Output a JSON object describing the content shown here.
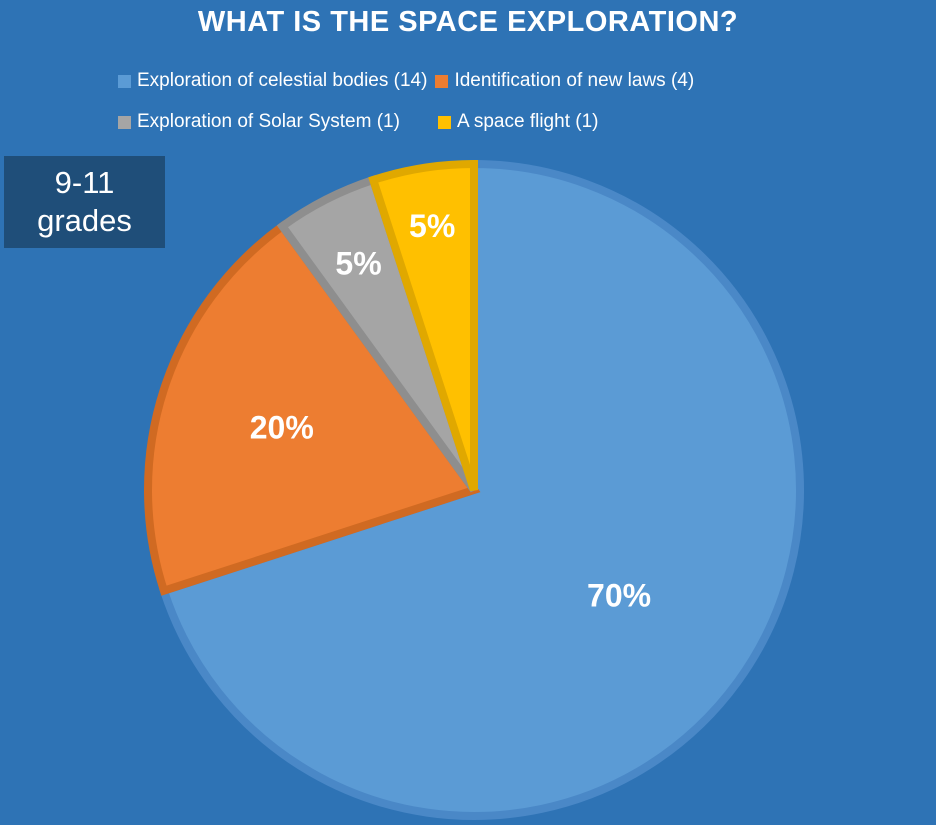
{
  "chart_data": {
    "type": "pie",
    "title": "WHAT IS THE SPACE EXPLORATION?",
    "slices": [
      {
        "name": "Exploration of celestial bodies (14)",
        "value": 14,
        "label": "70%",
        "color": "#5b9bd5"
      },
      {
        "name": "Identification of new laws (4)",
        "value": 4,
        "label": "20%",
        "color": "#ed7d31"
      },
      {
        "name": "Exploration of Solar System (1)",
        "value": 1,
        "label": "5%",
        "color": "#a5a5a5"
      },
      {
        "name": "A space flight (1)",
        "value": 1,
        "label": "5%",
        "color": "#ffc000"
      }
    ],
    "legend": "top"
  },
  "badge": {
    "line1": "9-11",
    "line2": "grades"
  }
}
